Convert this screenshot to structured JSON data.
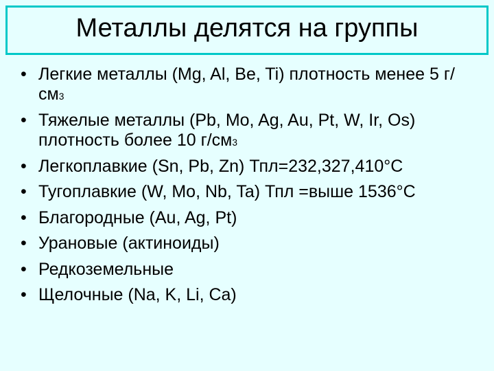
{
  "slide": {
    "background_color": "#e6ffff",
    "border_color": "#00c8c8",
    "title": "Металлы делятся на группы",
    "title_fontsize": 38,
    "bullet_fontsize": 25,
    "text_color": "#000000",
    "bullets": [
      {
        "pre": "Легкие металлы (Mg, Al, Be, Ti) плотность менее 5 г/см",
        "sup": "3",
        "post": ""
      },
      {
        "pre": "Тяжелые металлы (Pb, Mo, Ag, Au, Pt, W, Ir, Os) плотность более 10 г/см",
        "sup": "3",
        "post": ""
      },
      {
        "pre": "Легкоплавкие (Sn, Pb, Zn) Тпл=232,327,410°С",
        "sup": "",
        "post": ""
      },
      {
        "pre": "Тугоплавкие (W, Mo, Nb, Ta) Тпл =выше 1536°С",
        "sup": "",
        "post": ""
      },
      {
        "pre": "Благородные (Au, Ag, Pt)",
        "sup": "",
        "post": ""
      },
      {
        "pre": "Урановые (актиноиды)",
        "sup": "",
        "post": ""
      },
      {
        "pre": "Редкоземельные",
        "sup": "",
        "post": ""
      },
      {
        "pre": "Щелочные (Na, K, Li, Ca)",
        "sup": "",
        "post": ""
      }
    ]
  }
}
